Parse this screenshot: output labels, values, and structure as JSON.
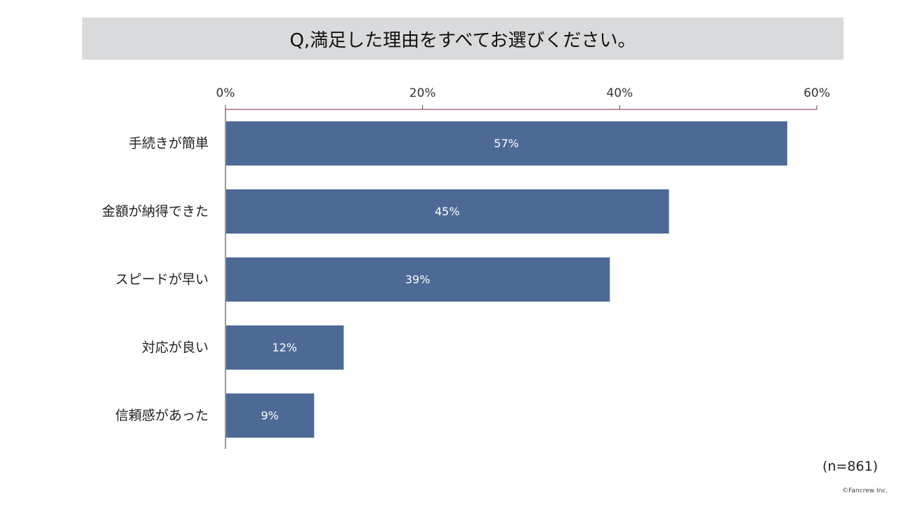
{
  "title": "Q,満足した理由をすべてお選びください。",
  "footnote": "(n=861)",
  "copyright": "©Fancrew Inc.",
  "colors": {
    "bar": "#4d6a97",
    "axis": "#7a2f3a",
    "title_bg": "#d9dadc"
  },
  "chart_data": {
    "type": "bar",
    "orientation": "horizontal",
    "categories": [
      "手続きが簡単",
      "金額が納得できた",
      "スピードが早い",
      "対応が良い",
      "信頼感があった"
    ],
    "values": [
      57,
      45,
      39,
      12,
      9
    ],
    "value_labels": [
      "57%",
      "45%",
      "39%",
      "12%",
      "9%"
    ],
    "xlim": [
      0,
      60
    ],
    "x_ticks": [
      0,
      20,
      40,
      60
    ],
    "x_tick_labels": [
      "0%",
      "20%",
      "40%",
      "60%"
    ],
    "axis_position": "top",
    "grid": false,
    "legend": "none"
  }
}
